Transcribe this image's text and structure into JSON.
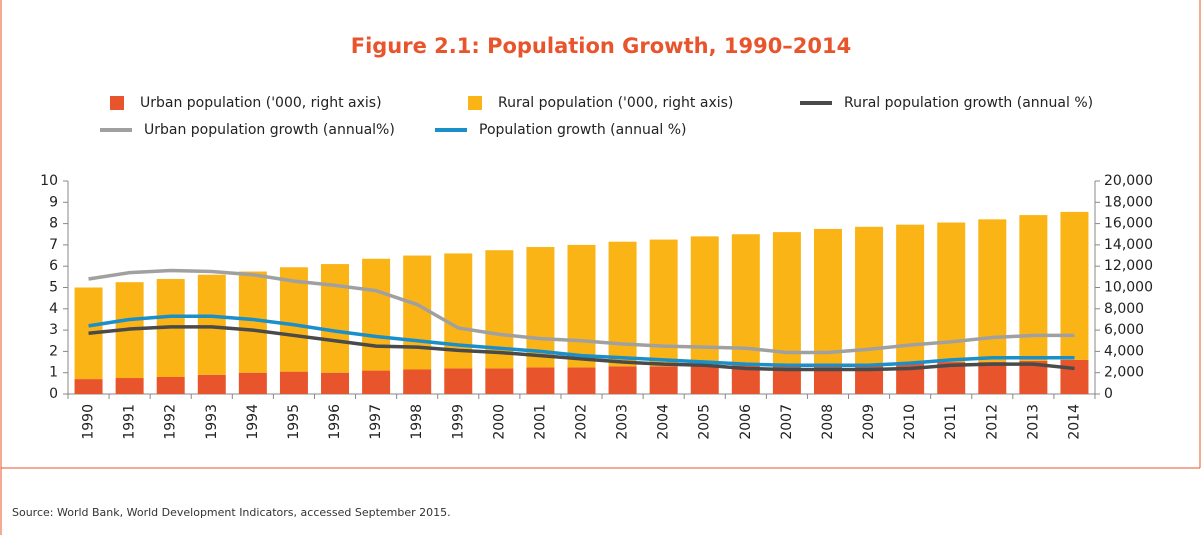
{
  "chart_data": {
    "type": "combo",
    "title": "Figure 2.1: Population Growth, 1990–2014",
    "source": "Source: World Bank, World Development Indicators, accessed September 2015.",
    "categories": [
      "1990",
      "1991",
      "1992",
      "1993",
      "1994",
      "1995",
      "1996",
      "1997",
      "1998",
      "1999",
      "2000",
      "2001",
      "2002",
      "2003",
      "2004",
      "2005",
      "2006",
      "2007",
      "2008",
      "2009",
      "2010",
      "2011",
      "2012",
      "2013",
      "2014"
    ],
    "ylim": [
      0,
      10
    ],
    "yticks": [
      0,
      1,
      2,
      3,
      4,
      5,
      6,
      7,
      8,
      9,
      10
    ],
    "y2lim": [
      0,
      20000
    ],
    "y2ticks": [
      0,
      {
        "value": 2000,
        "label": "2,000"
      },
      {
        "value": 4000,
        "label": "4,000"
      },
      {
        "value": 6000,
        "label": "6,000"
      },
      {
        "value": 8000,
        "label": "8,000"
      },
      {
        "value": 10000,
        "label": "10,000"
      },
      {
        "value": 12000,
        "label": "12,000"
      },
      {
        "value": 14000,
        "label": "14,000"
      },
      {
        "value": 16000,
        "label": "16,000"
      },
      {
        "value": 18000,
        "label": "18,000"
      },
      {
        "value": 20000,
        "label": "20,000"
      }
    ],
    "series": [
      {
        "name": "Urban population ('000, right axis)",
        "type": "bar",
        "axis": "y2",
        "color": "#e8542c",
        "values": [
          1400,
          1500,
          1600,
          1800,
          2000,
          2100,
          2000,
          2200,
          2300,
          2400,
          2400,
          2500,
          2500,
          2600,
          2600,
          2600,
          2700,
          2700,
          2800,
          2800,
          2900,
          3000,
          3000,
          3100,
          3200
        ]
      },
      {
        "name": "Rural population ('000, right axis)",
        "type": "bar",
        "axis": "y2",
        "color": "#fbb416",
        "values": [
          8600,
          9000,
          9200,
          9400,
          9500,
          9800,
          10200,
          10500,
          10700,
          10800,
          11100,
          11300,
          11500,
          11700,
          11900,
          12200,
          12300,
          12500,
          12700,
          12900,
          13000,
          13100,
          13400,
          13700,
          13900
        ]
      },
      {
        "name": "Rural population growth (annual %)",
        "type": "line",
        "color": "#4a4a4a",
        "values": [
          2.85,
          3.05,
          3.15,
          3.15,
          3.0,
          2.75,
          2.5,
          2.25,
          2.2,
          2.05,
          1.95,
          1.8,
          1.65,
          1.5,
          1.4,
          1.35,
          1.2,
          1.15,
          1.15,
          1.15,
          1.2,
          1.35,
          1.4,
          1.4,
          1.2
        ]
      },
      {
        "name": "Urban population growth (annual%)",
        "type": "line",
        "color": "#a0a0a0",
        "values": [
          5.4,
          5.7,
          5.8,
          5.75,
          5.6,
          5.3,
          5.1,
          4.85,
          4.2,
          3.1,
          2.8,
          2.6,
          2.5,
          2.35,
          2.25,
          2.2,
          2.15,
          1.95,
          1.95,
          2.1,
          2.3,
          2.45,
          2.65,
          2.75,
          2.75
        ]
      },
      {
        "name": "Population growth (annual %)",
        "type": "line",
        "color": "#1a8fc9",
        "values": [
          3.2,
          3.5,
          3.65,
          3.65,
          3.5,
          3.25,
          2.95,
          2.7,
          2.5,
          2.3,
          2.15,
          2.0,
          1.8,
          1.7,
          1.6,
          1.5,
          1.4,
          1.35,
          1.35,
          1.35,
          1.45,
          1.6,
          1.7,
          1.7,
          1.7
        ]
      }
    ]
  }
}
